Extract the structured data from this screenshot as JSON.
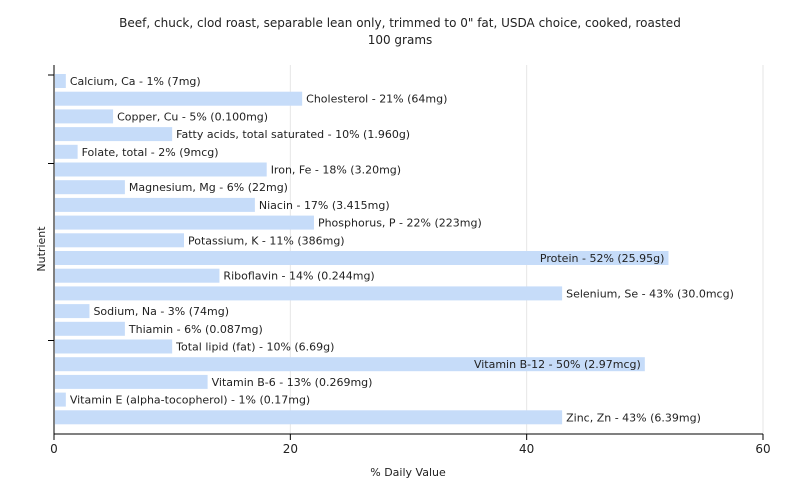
{
  "chart_data": {
    "type": "bar",
    "orientation": "horizontal",
    "title": "Beef, chuck, clod roast, separable lean only, trimmed to 0\" fat, USDA choice, cooked, roasted",
    "subtitle": "100 grams",
    "xlabel": "% Daily Value",
    "ylabel": "Nutrient",
    "xlim": [
      0,
      60
    ],
    "xticks": [
      0,
      20,
      40,
      60
    ],
    "grid": true,
    "bar_color": "#c6dcf9",
    "categories": [
      "Calcium, Ca",
      "Cholesterol",
      "Copper, Cu",
      "Fatty acids, total saturated",
      "Folate, total",
      "Iron, Fe",
      "Magnesium, Mg",
      "Niacin",
      "Phosphorus, P",
      "Potassium, K",
      "Protein",
      "Riboflavin",
      "Selenium, Se",
      "Sodium, Na",
      "Thiamin",
      "Total lipid (fat)",
      "Vitamin B-12",
      "Vitamin B-6",
      "Vitamin E (alpha-tocopherol)",
      "Zinc, Zn"
    ],
    "values": [
      1,
      21,
      5,
      10,
      2,
      18,
      6,
      17,
      22,
      11,
      52,
      14,
      43,
      3,
      6,
      10,
      50,
      13,
      1,
      43
    ],
    "labels": [
      "Calcium, Ca - 1% (7mg)",
      "Cholesterol - 21% (64mg)",
      "Copper, Cu - 5% (0.100mg)",
      "Fatty acids, total saturated - 10% (1.960g)",
      "Folate, total - 2% (9mcg)",
      "Iron, Fe - 18% (3.20mg)",
      "Magnesium, Mg - 6% (22mg)",
      "Niacin - 17% (3.415mg)",
      "Phosphorus, P - 22% (223mg)",
      "Potassium, K - 11% (386mg)",
      "Protein - 52% (25.95g)",
      "Riboflavin - 14% (0.244mg)",
      "Selenium, Se - 43% (30.0mcg)",
      "Sodium, Na - 3% (74mg)",
      "Thiamin - 6% (0.087mg)",
      "Total lipid (fat) - 10% (6.69g)",
      "Vitamin B-12 - 50% (2.97mcg)",
      "Vitamin B-6 - 13% (0.269mg)",
      "Vitamin E (alpha-tocopherol) - 1% (0.17mg)",
      "Zinc, Zn - 43% (6.39mg)"
    ]
  }
}
